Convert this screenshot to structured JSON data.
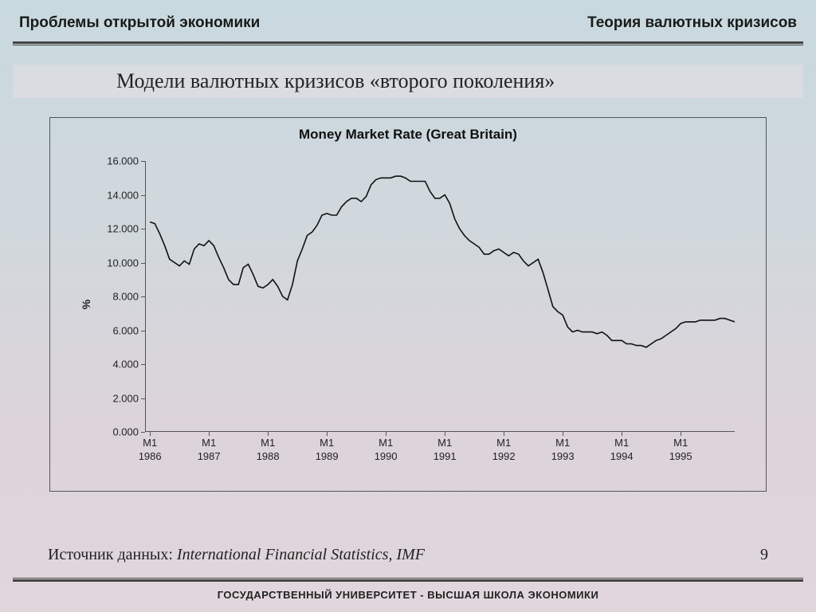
{
  "header": {
    "left": "Проблемы открытой экономики",
    "right": "Теория валютных кризисов"
  },
  "subtitle": "Модели валютных кризисов «второго поколения»",
  "chart": {
    "type": "line",
    "title": "Money Market Rate (Great Britain)",
    "ylabel": "%",
    "ylim": [
      0,
      16
    ],
    "ytick_step": 2,
    "ytick_labels": [
      "0.000",
      "2.000",
      "4.000",
      "6.000",
      "8.000",
      "10.000",
      "12.000",
      "14.000",
      "16.000"
    ],
    "xlim": [
      0,
      120
    ],
    "xticks": [
      1,
      13,
      25,
      37,
      49,
      61,
      73,
      85,
      97,
      109
    ],
    "xtick_labels_top": [
      "M1",
      "M1",
      "M1",
      "M1",
      "M1",
      "M1",
      "M1",
      "M1",
      "M1",
      "M1"
    ],
    "xtick_labels_bot": [
      "1986",
      "1987",
      "1988",
      "1989",
      "1990",
      "1991",
      "1992",
      "1993",
      "1994",
      "1995"
    ],
    "line_color": "#111111",
    "line_width": 1.6,
    "border_color": "#555555",
    "background_color": "transparent",
    "values": [
      12.4,
      12.3,
      11.7,
      11.0,
      10.2,
      10.0,
      9.8,
      10.1,
      9.9,
      10.8,
      11.1,
      11.0,
      11.3,
      11.0,
      10.3,
      9.7,
      9.0,
      8.7,
      8.7,
      9.7,
      9.9,
      9.3,
      8.6,
      8.5,
      8.7,
      9.0,
      8.6,
      8.0,
      7.8,
      8.7,
      10.1,
      10.8,
      11.6,
      11.8,
      12.2,
      12.8,
      12.9,
      12.8,
      12.8,
      13.3,
      13.6,
      13.8,
      13.8,
      13.6,
      13.9,
      14.6,
      14.9,
      15.0,
      15.0,
      15.0,
      15.1,
      15.1,
      15.0,
      14.8,
      14.8,
      14.8,
      14.8,
      14.2,
      13.8,
      13.8,
      14.0,
      13.5,
      12.6,
      12.0,
      11.6,
      11.3,
      11.1,
      10.9,
      10.5,
      10.5,
      10.7,
      10.8,
      10.6,
      10.4,
      10.6,
      10.5,
      10.1,
      9.8,
      10.0,
      10.2,
      9.4,
      8.4,
      7.4,
      7.1,
      6.9,
      6.2,
      5.9,
      6.0,
      5.9,
      5.9,
      5.9,
      5.8,
      5.9,
      5.7,
      5.4,
      5.4,
      5.4,
      5.2,
      5.2,
      5.1,
      5.1,
      5.0,
      5.2,
      5.4,
      5.5,
      5.7,
      5.9,
      6.1,
      6.4,
      6.5,
      6.5,
      6.5,
      6.6,
      6.6,
      6.6,
      6.6,
      6.7,
      6.7,
      6.6,
      6.5
    ]
  },
  "source": {
    "label": "Источник данных: ",
    "value": "International Financial Statistics, IMF"
  },
  "page_number": "9",
  "footer": "ГОСУДАРСТВЕННЫЙ УНИВЕРСИТЕТ - ВЫСШАЯ ШКОЛА ЭКОНОМИКИ"
}
